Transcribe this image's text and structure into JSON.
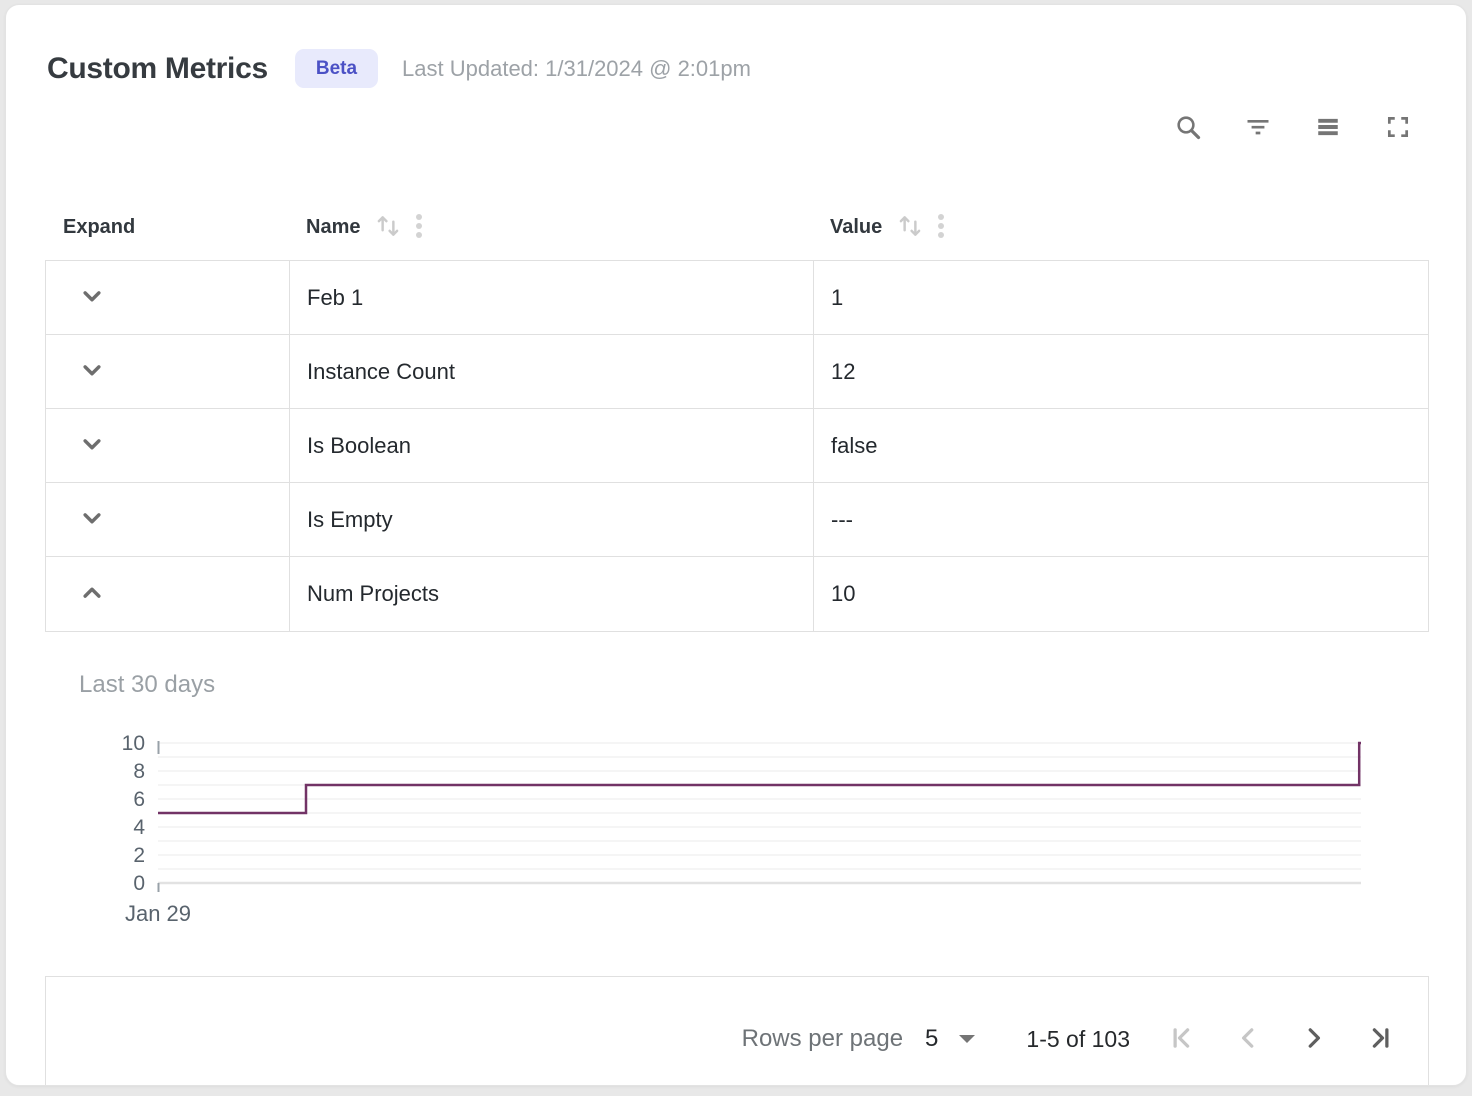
{
  "header": {
    "title": "Custom Metrics",
    "badge": "Beta",
    "last_updated": "Last Updated: 1/31/2024 @ 2:01pm"
  },
  "toolbar": {
    "icons": [
      "search-icon",
      "filter-icon",
      "density-icon",
      "fullscreen-icon"
    ]
  },
  "table": {
    "columns": [
      {
        "label": "Expand"
      },
      {
        "label": "Name",
        "sortable": true
      },
      {
        "label": "Value",
        "sortable": true
      }
    ],
    "rows": [
      {
        "name": "Feb 1",
        "value": "1",
        "expanded": false
      },
      {
        "name": "Instance Count",
        "value": "12",
        "expanded": false
      },
      {
        "name": "Is Boolean",
        "value": "false",
        "expanded": false
      },
      {
        "name": "Is Empty",
        "value": "---",
        "expanded": false
      },
      {
        "name": "Num Projects",
        "value": "10",
        "expanded": true
      }
    ]
  },
  "chart_data": {
    "type": "line",
    "line_style": "step-after",
    "title": "Last 30 days",
    "xlabel": "",
    "ylabel": "",
    "ylim": [
      0,
      10
    ],
    "y_ticks": [
      0,
      2,
      4,
      6,
      8,
      10
    ],
    "y_gridlines_every": 1,
    "grid": true,
    "legend": false,
    "x_tick_labels": [
      "Jan 29"
    ],
    "x_axis_note": "x is fraction of the 30-day window starting Jan 29",
    "series": [
      {
        "name": "Num Projects",
        "color": "#723366",
        "points": [
          [
            0,
            5
          ],
          [
            0.123,
            5
          ],
          [
            0.123,
            7
          ],
          [
            0.9985,
            7
          ],
          [
            0.9985,
            10
          ],
          [
            1,
            10
          ]
        ]
      }
    ]
  },
  "pagination": {
    "rows_per_page_label": "Rows per page",
    "rows_per_page_value": "5",
    "range_label": "1-5 of 103",
    "first_disabled": true,
    "prev_disabled": true,
    "next_disabled": false,
    "last_disabled": false
  },
  "colors": {
    "badge_bg": "#e8eafc",
    "badge_text": "#4b51c5",
    "chart_line": "#723366",
    "table_border": "#e0e0e0",
    "muted_text": "#9da2a7",
    "icon_gray": "#757575"
  }
}
